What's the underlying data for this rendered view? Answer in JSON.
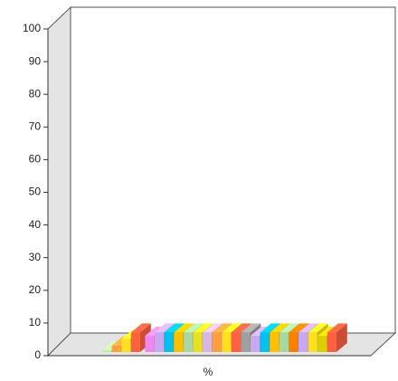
{
  "chart_data": {
    "type": "bar3d",
    "categories": [
      "%"
    ],
    "ylim": [
      0,
      100
    ],
    "yticks": [
      0,
      10,
      20,
      30,
      40,
      50,
      60,
      70,
      80,
      90,
      100
    ],
    "series": [
      {
        "color": "#b8f0a8",
        "values": [
          0.5
        ]
      },
      {
        "color": "#ffa040",
        "values": [
          2
        ]
      },
      {
        "color": "#ffe020",
        "values": [
          4
        ]
      },
      {
        "color": "#ff6040",
        "values": [
          6
        ]
      },
      {
        "color": "#ee88ee",
        "values": [
          5
        ]
      },
      {
        "color": "#c8a8f0",
        "values": [
          6
        ]
      },
      {
        "color": "#00c0f0",
        "values": [
          6
        ]
      },
      {
        "color": "#ffc000",
        "values": [
          6
        ]
      },
      {
        "color": "#a8d8a0",
        "values": [
          6
        ]
      },
      {
        "color": "#e8e020",
        "values": [
          6
        ]
      },
      {
        "color": "#d8b8e0",
        "values": [
          6
        ]
      },
      {
        "color": "#ffa040",
        "values": [
          6
        ]
      },
      {
        "color": "#ffe020",
        "values": [
          6
        ]
      },
      {
        "color": "#ff6040",
        "values": [
          6
        ]
      },
      {
        "color": "#a0a0a0",
        "values": [
          6
        ]
      },
      {
        "color": "#c8a8f0",
        "values": [
          5
        ]
      },
      {
        "color": "#00c0f0",
        "values": [
          6
        ]
      },
      {
        "color": "#ffc000",
        "values": [
          6
        ]
      },
      {
        "color": "#a8d8a0",
        "values": [
          6
        ]
      },
      {
        "color": "#ff8000",
        "values": [
          6
        ]
      },
      {
        "color": "#c8a8f0",
        "values": [
          6
        ]
      },
      {
        "color": "#ffe020",
        "values": [
          6
        ]
      },
      {
        "color": "#d8d000",
        "values": [
          5
        ]
      },
      {
        "color": "#ff6040",
        "values": [
          6
        ]
      }
    ]
  }
}
